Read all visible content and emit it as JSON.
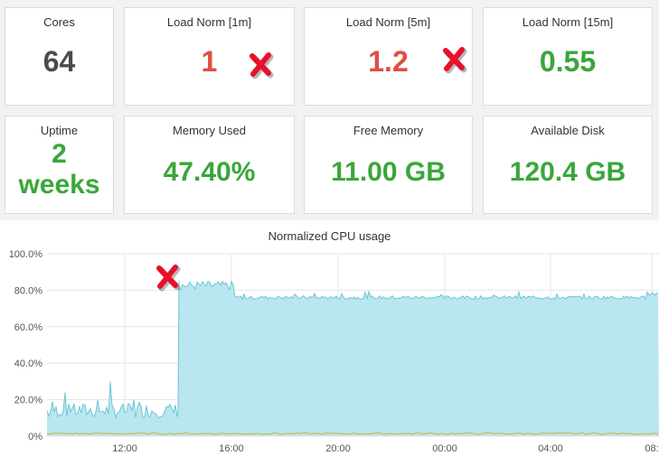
{
  "panels": {
    "cores": {
      "title": "Cores",
      "value": "64"
    },
    "load1": {
      "title": "Load Norm [1m]",
      "value": "1"
    },
    "load5": {
      "title": "Load Norm [5m]",
      "value": "1.2"
    },
    "load15": {
      "title": "Load Norm [15m]",
      "value": "0.55"
    },
    "uptime": {
      "title": "Uptime",
      "value_line1": "2",
      "value_line2": "weeks"
    },
    "mem_used": {
      "title": "Memory Used",
      "value": "47.40%"
    },
    "free_mem": {
      "title": "Free Memory",
      "value": "11.00 GB"
    },
    "avail_disk": {
      "title": "Available Disk",
      "value": "120.4 GB"
    }
  },
  "colors": {
    "dark": "#4b4b4f",
    "red": "#e24d42",
    "green": "#3aa63a",
    "cpu_line": "#6ec6d6",
    "cpu_fill": "#b9e6ef",
    "secondary_line": "#d1b94b"
  },
  "icons": {
    "marker": "red-x-icon"
  },
  "chart": {
    "title": "Normalized CPU usage",
    "y_ticks": [
      "100.0%",
      "80.0%",
      "60.0%",
      "40.0%",
      "20.0%",
      "0%"
    ],
    "x_ticks": [
      "12:00",
      "16:00",
      "20:00",
      "00:00",
      "04:00",
      "08:"
    ]
  },
  "chart_data": {
    "type": "area",
    "title": "Normalized CPU usage",
    "ylim": [
      0,
      100
    ],
    "y_unit": "%",
    "x_ticks": [
      "12:00",
      "16:00",
      "20:00",
      "00:00",
      "04:00",
      "08:"
    ],
    "series": [
      {
        "x": [
          "12:00",
          "13:00",
          "14:00",
          "15:00",
          "16:00",
          "17:00",
          "20:00",
          "00:00",
          "04:00",
          "08:00"
        ],
        "values": [
          12,
          11,
          12,
          85,
          80,
          76,
          76,
          75,
          75,
          78
        ]
      },
      {
        "x": [
          "12:00",
          "16:00",
          "20:00",
          "00:00",
          "04:00",
          "08:00"
        ],
        "values": [
          1,
          1,
          1,
          1,
          1,
          1
        ]
      }
    ]
  }
}
